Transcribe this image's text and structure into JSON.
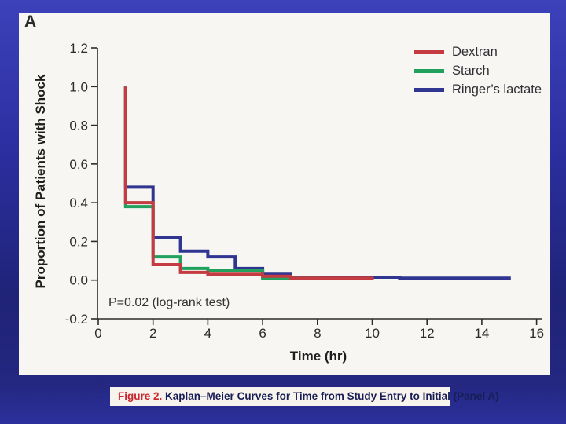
{
  "caption": {
    "label": "Figure 2.",
    "text": "Kaplan–Meier Curves for Time from Study Entry to Initial (Panel A)"
  },
  "colors": {
    "background_top": "#3d41ba",
    "background_bottom": "#2c309c",
    "panel_background": "#f7f6f2",
    "axis": "#2b2b2b",
    "caption_accent": "#c9262d",
    "caption_text": "#191d56"
  },
  "chart_data": {
    "type": "line",
    "subtype": "kaplan-meier-step",
    "panel_label": "A",
    "title": "",
    "xlabel": "Time (hr)",
    "ylabel": "Proportion of Patients with Shock",
    "annotation": "P=0.02 (log-rank test)",
    "xlim": [
      0,
      16
    ],
    "ylim": [
      -0.2,
      1.2
    ],
    "xticks": [
      "0",
      "2",
      "4",
      "6",
      "8",
      "10",
      "12",
      "14",
      "16"
    ],
    "yticks": [
      "-0.2",
      "0.0",
      "0.2",
      "0.4",
      "0.6",
      "0.8",
      "1.0",
      "1.2"
    ],
    "grid": false,
    "legend_position": "top-right",
    "series": [
      {
        "name": "Dextran",
        "color": "#c43b41",
        "points": [
          [
            1,
            1.0
          ],
          [
            1,
            0.4
          ],
          [
            2,
            0.4
          ],
          [
            2,
            0.08
          ],
          [
            3,
            0.08
          ],
          [
            3,
            0.04
          ],
          [
            4,
            0.04
          ],
          [
            4,
            0.03
          ],
          [
            6,
            0.03
          ],
          [
            6,
            0.02
          ],
          [
            7,
            0.02
          ],
          [
            7,
            0.01
          ],
          [
            10,
            0.01
          ],
          [
            10,
            0
          ]
        ]
      },
      {
        "name": "Starch",
        "color": "#21a15d",
        "points": [
          [
            1,
            1.0
          ],
          [
            1,
            0.38
          ],
          [
            2,
            0.38
          ],
          [
            2,
            0.12
          ],
          [
            3,
            0.12
          ],
          [
            3,
            0.06
          ],
          [
            4,
            0.06
          ],
          [
            4,
            0.05
          ],
          [
            6,
            0.05
          ],
          [
            6,
            0.01
          ],
          [
            8,
            0.01
          ],
          [
            8,
            0
          ]
        ]
      },
      {
        "name": "Ringer’s lactate",
        "color": "#2f3590",
        "points": [
          [
            1,
            1.0
          ],
          [
            1,
            0.48
          ],
          [
            2,
            0.48
          ],
          [
            2,
            0.22
          ],
          [
            3,
            0.22
          ],
          [
            3,
            0.15
          ],
          [
            4,
            0.15
          ],
          [
            4,
            0.12
          ],
          [
            5,
            0.12
          ],
          [
            5,
            0.06
          ],
          [
            6,
            0.06
          ],
          [
            6,
            0.03
          ],
          [
            7,
            0.03
          ],
          [
            7,
            0.015
          ],
          [
            11,
            0.015
          ],
          [
            11,
            0.01
          ],
          [
            15,
            0.01
          ],
          [
            15,
            0
          ]
        ]
      }
    ]
  }
}
